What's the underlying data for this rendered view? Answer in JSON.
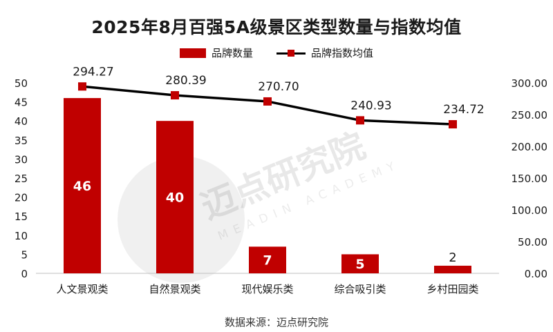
{
  "title": "2025年8月百强5A级景区类型数量与指数均值",
  "source": "数据来源：迈点研究院",
  "watermark": "迈点研究院 MEADIN ACADEMY",
  "colors": {
    "bar": "#c00000",
    "line": "#000000",
    "marker": "#c00000"
  },
  "chart_data": {
    "type": "bar",
    "categories": [
      "人文景观类",
      "自然景观类",
      "现代娱乐类",
      "综合吸引类",
      "乡村田园类"
    ],
    "series": [
      {
        "name": "品牌数量",
        "type": "bar",
        "axis": "left",
        "values": [
          46,
          40,
          7,
          5,
          2
        ],
        "labels": [
          "46",
          "40",
          "7",
          "5",
          "2"
        ]
      },
      {
        "name": "品牌指数均值",
        "type": "line",
        "axis": "right",
        "values": [
          294.27,
          280.39,
          270.7,
          240.93,
          234.72
        ],
        "labels": [
          "294.27",
          "280.39",
          "270.70",
          "240.93",
          "234.72"
        ]
      }
    ],
    "y_left": {
      "range": [
        0,
        50
      ],
      "ticks": [
        "0",
        "5",
        "10",
        "15",
        "20",
        "25",
        "30",
        "35",
        "40",
        "45",
        "50"
      ]
    },
    "y_right": {
      "range": [
        0,
        300
      ],
      "ticks": [
        "0.00",
        "50.00",
        "100.00",
        "150.00",
        "200.00",
        "250.00",
        "300.00"
      ]
    },
    "grid": false,
    "legend_position": "top-center"
  }
}
